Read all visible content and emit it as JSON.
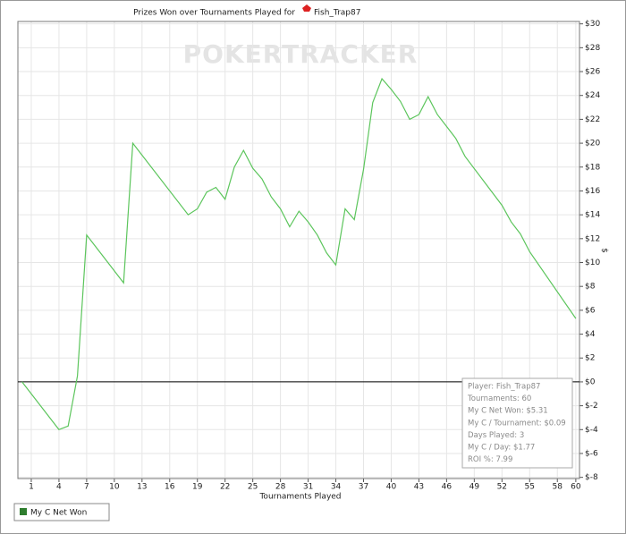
{
  "chart_data": {
    "type": "line",
    "title": "Prizes Won over Tournaments Played for",
    "player": "Fish_Trap87",
    "watermark": "POKERTRACKER",
    "x_label": "Tournaments Played",
    "y_label": "$",
    "x": [
      0,
      4,
      5,
      6,
      7,
      11,
      12,
      18,
      19,
      20,
      21,
      22,
      23,
      24,
      25,
      26,
      27,
      28,
      29,
      30,
      31,
      32,
      33,
      34,
      35,
      36,
      37,
      38,
      39,
      40,
      41,
      42,
      43,
      44,
      45,
      46,
      47,
      48,
      52,
      53,
      54,
      55,
      60
    ],
    "series": [
      {
        "name": "My C Net Won",
        "color": "#5cc55c",
        "legend_color": "#2e7d2e",
        "values": [
          0,
          -4.0,
          -3.7,
          0.5,
          12.3,
          8.3,
          20.0,
          14.0,
          14.5,
          15.9,
          16.3,
          15.3,
          18.0,
          19.4,
          17.9,
          17.0,
          15.5,
          14.5,
          13.0,
          14.3,
          13.4,
          12.3,
          10.8,
          9.8,
          14.5,
          13.6,
          17.8,
          23.4,
          25.4,
          24.5,
          23.5,
          22.0,
          22.4,
          23.9,
          22.4,
          21.4,
          20.4,
          18.9,
          14.8,
          13.4,
          12.4,
          10.9,
          5.31
        ]
      }
    ],
    "xlim": [
      -0.45,
      60.4
    ],
    "ylim": [
      -8.1,
      30.2
    ],
    "xticks": [
      1,
      4,
      7,
      10,
      13,
      16,
      19,
      22,
      25,
      28,
      31,
      34,
      37,
      40,
      43,
      46,
      49,
      52,
      55,
      58,
      60
    ],
    "yticks": [
      {
        "value": -8,
        "label": "$-8"
      },
      {
        "value": -6,
        "label": "$-6"
      },
      {
        "value": -4,
        "label": "$-4"
      },
      {
        "value": -2,
        "label": "$-2"
      },
      {
        "value": 0,
        "label": "$0"
      },
      {
        "value": 2,
        "label": "$2"
      },
      {
        "value": 4,
        "label": "$4"
      },
      {
        "value": 6,
        "label": "$6"
      },
      {
        "value": 8,
        "label": "$8"
      },
      {
        "value": 10,
        "label": "$10"
      },
      {
        "value": 12,
        "label": "$12"
      },
      {
        "value": 14,
        "label": "$14"
      },
      {
        "value": 16,
        "label": "$16"
      },
      {
        "value": 18,
        "label": "$18"
      },
      {
        "value": 20,
        "label": "$20"
      },
      {
        "value": 22,
        "label": "$22"
      },
      {
        "value": 24,
        "label": "$24"
      },
      {
        "value": 26,
        "label": "$26"
      },
      {
        "value": 28,
        "label": "$28"
      },
      {
        "value": 30,
        "label": "$30"
      }
    ],
    "grid": true,
    "zero_line": true,
    "annotations": [
      "Player: Fish_Trap87",
      "Tournaments: 60",
      "My C Net Won: $5.31",
      "My C / Tournament: $0.09",
      "Days Played: 3",
      "My C / Day: $1.77",
      "ROI %: 7.99"
    ]
  }
}
